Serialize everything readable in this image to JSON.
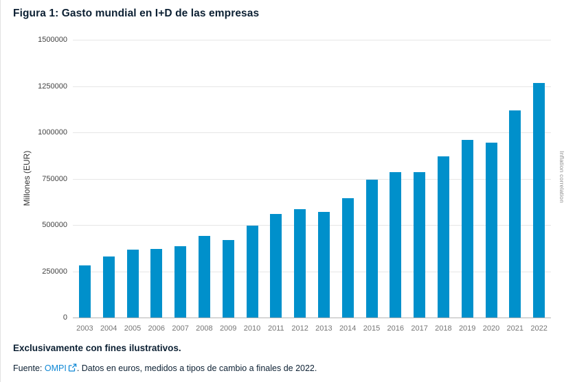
{
  "title": "Figura 1: Gasto mundial en I+D de las empresas",
  "chart_data": {
    "type": "bar",
    "title": "Figura 1: Gasto mundial en I+D de las empresas",
    "categories": [
      "2003",
      "2004",
      "2005",
      "2006",
      "2007",
      "2008",
      "2009",
      "2010",
      "2011",
      "2012",
      "2013",
      "2014",
      "2015",
      "2016",
      "2017",
      "2018",
      "2019",
      "2020",
      "2021",
      "2022"
    ],
    "values": [
      280000,
      330000,
      365000,
      370000,
      385000,
      440000,
      420000,
      497000,
      560000,
      585000,
      570000,
      645000,
      745000,
      785000,
      785000,
      870000,
      960000,
      945000,
      1120000,
      1265000
    ],
    "xlabel": "",
    "ylabel": "Millones (EUR)",
    "right_axis_label": "Inflation correlation",
    "ylim": [
      0,
      1500000
    ],
    "yticks": [
      0,
      250000,
      500000,
      750000,
      1000000,
      1250000,
      1500000
    ],
    "ytick_labels": [
      "0",
      "250000",
      "500000",
      "750000",
      "1000000",
      "1250000",
      "1500000"
    ],
    "grid": true,
    "legend": "none",
    "bar_color": "#0090cb"
  },
  "footer": {
    "disclaimer": "Exclusivamente con fines ilustrativos.",
    "source_prefix": "Fuente: ",
    "source_link_label": "OMPI",
    "source_suffix": ". Datos en euros, medidos a tipos de cambio a finales de 2022."
  },
  "colors": {
    "bar": "#0090cb",
    "title_text": "#0c2033",
    "link": "#0e87d5",
    "gridline": "#e6e6e6",
    "axis_line": "#b3b3b3",
    "xtick_text": "#757575",
    "ytick_text": "#424242"
  }
}
